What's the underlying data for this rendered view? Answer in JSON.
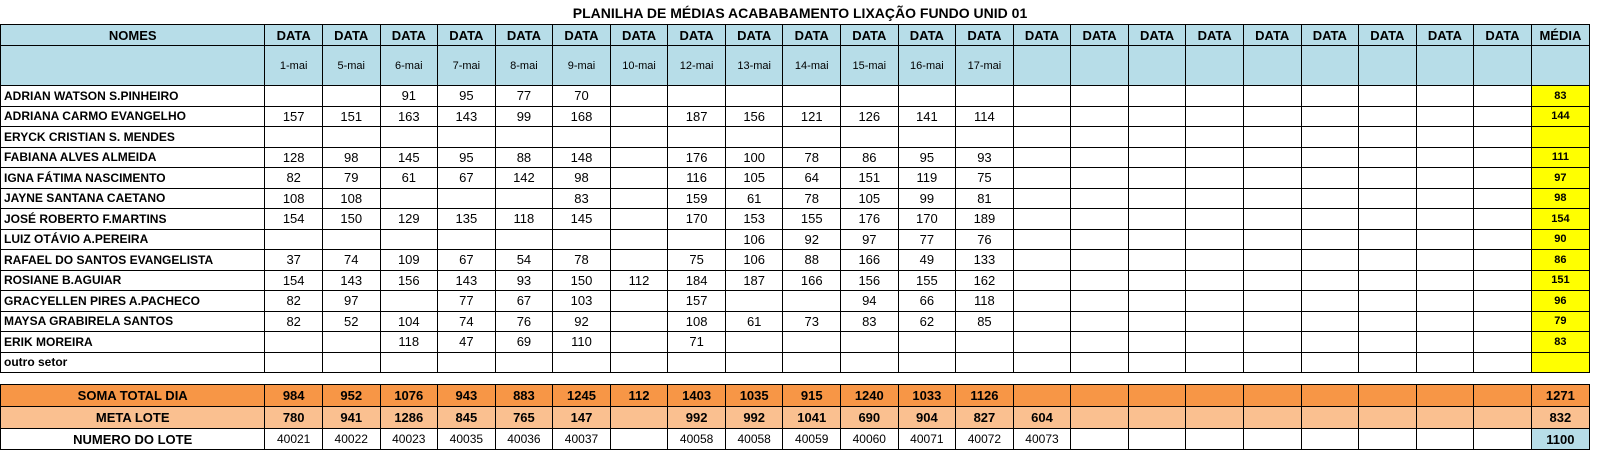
{
  "title": "PLANILHA DE MÉDIAS ACABABAMENTO LIXAÇÃO FUNDO UNID 01",
  "header": {
    "names_label": "NOMES",
    "data_label": "DATA",
    "media_label": "MÉDIA"
  },
  "dates": [
    "1-mai",
    "5-mai",
    "6-mai",
    "7-mai",
    "8-mai",
    "9-mai",
    "10-mai",
    "12-mai",
    "13-mai",
    "14-mai",
    "15-mai",
    "16-mai",
    "17-mai",
    "",
    "",
    "",
    "",
    "",
    "",
    "",
    "",
    ""
  ],
  "rows": [
    {
      "name": "ADRIAN WATSON S.PINHEIRO",
      "values": [
        "",
        "",
        "91",
        "95",
        "77",
        "70",
        "",
        "",
        "",
        "",
        "",
        "",
        "",
        "",
        "",
        "",
        "",
        "",
        "",
        "",
        "",
        ""
      ],
      "media": "83"
    },
    {
      "name": "ADRIANA CARMO EVANGELHO",
      "values": [
        "157",
        "151",
        "163",
        "143",
        "99",
        "168",
        "",
        "187",
        "156",
        "121",
        "126",
        "141",
        "114",
        "",
        "",
        "",
        "",
        "",
        "",
        "",
        "",
        ""
      ],
      "media": "144"
    },
    {
      "name": "ERYCK CRISTIAN S. MENDES",
      "values": [
        "",
        "",
        "",
        "",
        "",
        "",
        "",
        "",
        "",
        "",
        "",
        "",
        "",
        "",
        "",
        "",
        "",
        "",
        "",
        "",
        "",
        ""
      ],
      "media": ""
    },
    {
      "name": "FABIANA ALVES ALMEIDA",
      "values": [
        "128",
        "98",
        "145",
        "95",
        "88",
        "148",
        "",
        "176",
        "100",
        "78",
        "86",
        "95",
        "93",
        "",
        "",
        "",
        "",
        "",
        "",
        "",
        "",
        ""
      ],
      "media": "111"
    },
    {
      "name": "IGNA FÁTIMA NASCIMENTO",
      "values": [
        "82",
        "79",
        "61",
        "67",
        "142",
        "98",
        "",
        "116",
        "105",
        "64",
        "151",
        "119",
        "75",
        "",
        "",
        "",
        "",
        "",
        "",
        "",
        "",
        ""
      ],
      "media": "97"
    },
    {
      "name": "JAYNE SANTANA CAETANO",
      "values": [
        "108",
        "108",
        "",
        "",
        "",
        "83",
        "",
        "159",
        "61",
        "78",
        "105",
        "99",
        "81",
        "",
        "",
        "",
        "",
        "",
        "",
        "",
        "",
        ""
      ],
      "media": "98"
    },
    {
      "name": "JOSÉ ROBERTO F.MARTINS",
      "values": [
        "154",
        "150",
        "129",
        "135",
        "118",
        "145",
        "",
        "170",
        "153",
        "155",
        "176",
        "170",
        "189",
        "",
        "",
        "",
        "",
        "",
        "",
        "",
        "",
        ""
      ],
      "media": "154"
    },
    {
      "name": "LUIZ OTÁVIO A.PEREIRA",
      "values": [
        "",
        "",
        "",
        "",
        "",
        "",
        "",
        "",
        "106",
        "92",
        "97",
        "77",
        "76",
        "",
        "",
        "",
        "",
        "",
        "",
        "",
        "",
        ""
      ],
      "media": "90"
    },
    {
      "name": "RAFAEL DO SANTOS EVANGELISTA",
      "values": [
        "37",
        "74",
        "109",
        "67",
        "54",
        "78",
        "",
        "75",
        "106",
        "88",
        "166",
        "49",
        "133",
        "",
        "",
        "",
        "",
        "",
        "",
        "",
        "",
        ""
      ],
      "media": "86"
    },
    {
      "name": "ROSIANE B.AGUIAR",
      "values": [
        "154",
        "143",
        "156",
        "143",
        "93",
        "150",
        "112",
        "184",
        "187",
        "166",
        "156",
        "155",
        "162",
        "",
        "",
        "",
        "",
        "",
        "",
        "",
        "",
        ""
      ],
      "media": "151"
    },
    {
      "name": "GRACYELLEN PIRES A.PACHECO",
      "values": [
        "82",
        "97",
        "",
        "77",
        "67",
        "103",
        "",
        "157",
        "",
        "",
        "94",
        "66",
        "118",
        "",
        "",
        "",
        "",
        "",
        "",
        "",
        "",
        ""
      ],
      "media": "96"
    },
    {
      "name": "MAYSA GRABIRELA SANTOS",
      "values": [
        "82",
        "52",
        "104",
        "74",
        "76",
        "92",
        "",
        "108",
        "61",
        "73",
        "83",
        "62",
        "85",
        "",
        "",
        "",
        "",
        "",
        "",
        "",
        "",
        ""
      ],
      "media": "79"
    },
    {
      "name": "ERIK MOREIRA",
      "values": [
        "",
        "",
        "118",
        "47",
        "69",
        "110",
        "",
        "71",
        "",
        "",
        "",
        "",
        "",
        "",
        "",
        "",
        "",
        "",
        "",
        "",
        "",
        ""
      ],
      "media": "83"
    },
    {
      "name": "outro setor",
      "values": [
        "",
        "",
        "",
        "",
        "",
        "",
        "",
        "",
        "",
        "",
        "",
        "",
        "",
        "",
        "",
        "",
        "",
        "",
        "",
        "",
        "",
        ""
      ],
      "media": ""
    }
  ],
  "soma": {
    "label": "SOMA TOTAL DIA",
    "values": [
      "984",
      "952",
      "1076",
      "943",
      "883",
      "1245",
      "112",
      "1403",
      "1035",
      "915",
      "1240",
      "1033",
      "1126",
      "",
      "",
      "",
      "",
      "",
      "",
      "",
      "",
      ""
    ],
    "media": "1271"
  },
  "meta": {
    "label": "META LOTE",
    "values": [
      "780",
      "941",
      "1286",
      "845",
      "765",
      "147",
      "",
      "992",
      "992",
      "1041",
      "690",
      "904",
      "827",
      "604",
      "",
      "",
      "",
      "",
      "",
      "",
      "",
      ""
    ],
    "media": "832"
  },
  "lote": {
    "label": "NUMERO DO LOTE",
    "values": [
      "40021",
      "40022",
      "40023",
      "40035",
      "40036",
      "40037",
      "",
      "40058",
      "40058",
      "40059",
      "40060",
      "40071",
      "40072",
      "40073",
      "",
      "",
      "",
      "",
      "",
      "",
      "",
      ""
    ],
    "media": "1100"
  },
  "colors": {
    "header_bg": "#b7dde8",
    "media_bg": "#ffff00",
    "soma_bg": "#f79646",
    "meta_bg": "#fac090"
  }
}
